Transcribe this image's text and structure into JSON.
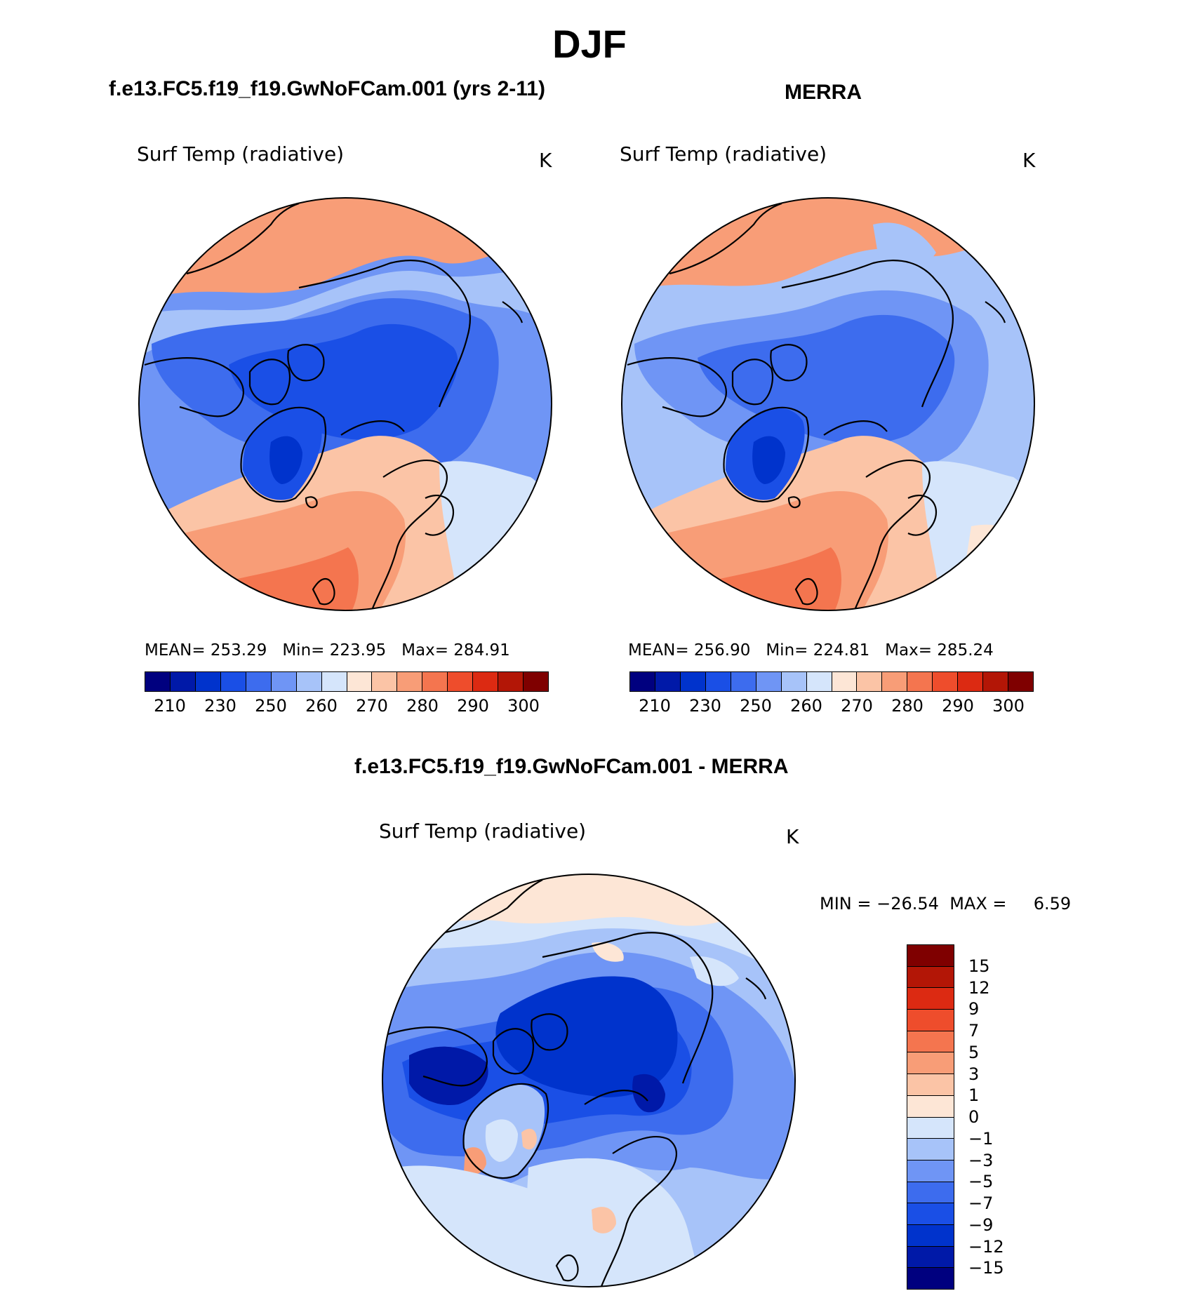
{
  "page_title": "DJF",
  "panels": [
    {
      "case_title": "f.e13.FC5.f19_f19.GwNoFCam.001 (yrs 2-11)",
      "variable": "Surf Temp (radiative)",
      "units": "K",
      "stats": {
        "mean_label": "MEAN=",
        "mean": "253.29",
        "min_label": "Min=",
        "min": "223.95",
        "max_label": "Max=",
        "max": "284.91"
      }
    },
    {
      "case_title": "MERRA",
      "variable": "Surf Temp (radiative)",
      "units": "K",
      "stats": {
        "mean_label": "MEAN=",
        "mean": "256.90",
        "min_label": "Min=",
        "min": "224.81",
        "max_label": "Max=",
        "max": "285.24"
      }
    }
  ],
  "abs_colorbar": {
    "colors": [
      "#00007f",
      "#0019a8",
      "#0033cc",
      "#1a4fe6",
      "#3d6cee",
      "#6f95f5",
      "#a7c3f9",
      "#d5e5fb",
      "#fde6d6",
      "#fbc4a6",
      "#f89d77",
      "#f4754f",
      "#ee4d2c",
      "#dc2a12",
      "#b31606",
      "#7f0000"
    ],
    "tick_labels": [
      "210",
      "230",
      "250",
      "260",
      "270",
      "280",
      "290",
      "300"
    ]
  },
  "diff_panel": {
    "title": "f.e13.FC5.f19_f19.GwNoFCam.001 - MERRA",
    "variable": "Surf Temp (radiative)",
    "units": "K",
    "min_label": "MIN =",
    "min": "−26.54",
    "max_label": "MAX =",
    "max": "6.59"
  },
  "diff_colorbar": {
    "colors_top_to_bottom": [
      "#7f0000",
      "#b31606",
      "#dc2a12",
      "#ee4d2c",
      "#f4754f",
      "#f89d77",
      "#fbc4a6",
      "#fde6d6",
      "#d5e5fb",
      "#a7c3f9",
      "#6f95f5",
      "#3d6cee",
      "#1a4fe6",
      "#0033cc",
      "#0019a8",
      "#00007f"
    ],
    "tick_labels": [
      "15",
      "12",
      "9",
      "7",
      "5",
      "3",
      "1",
      "0",
      "−1",
      "−3",
      "−5",
      "−7",
      "−9",
      "−12",
      "−15"
    ]
  },
  "colors": {
    "land_outline": "#000000",
    "cold": "#3d6cee",
    "cool": "#6f95f5",
    "warm": "#f4754f"
  }
}
